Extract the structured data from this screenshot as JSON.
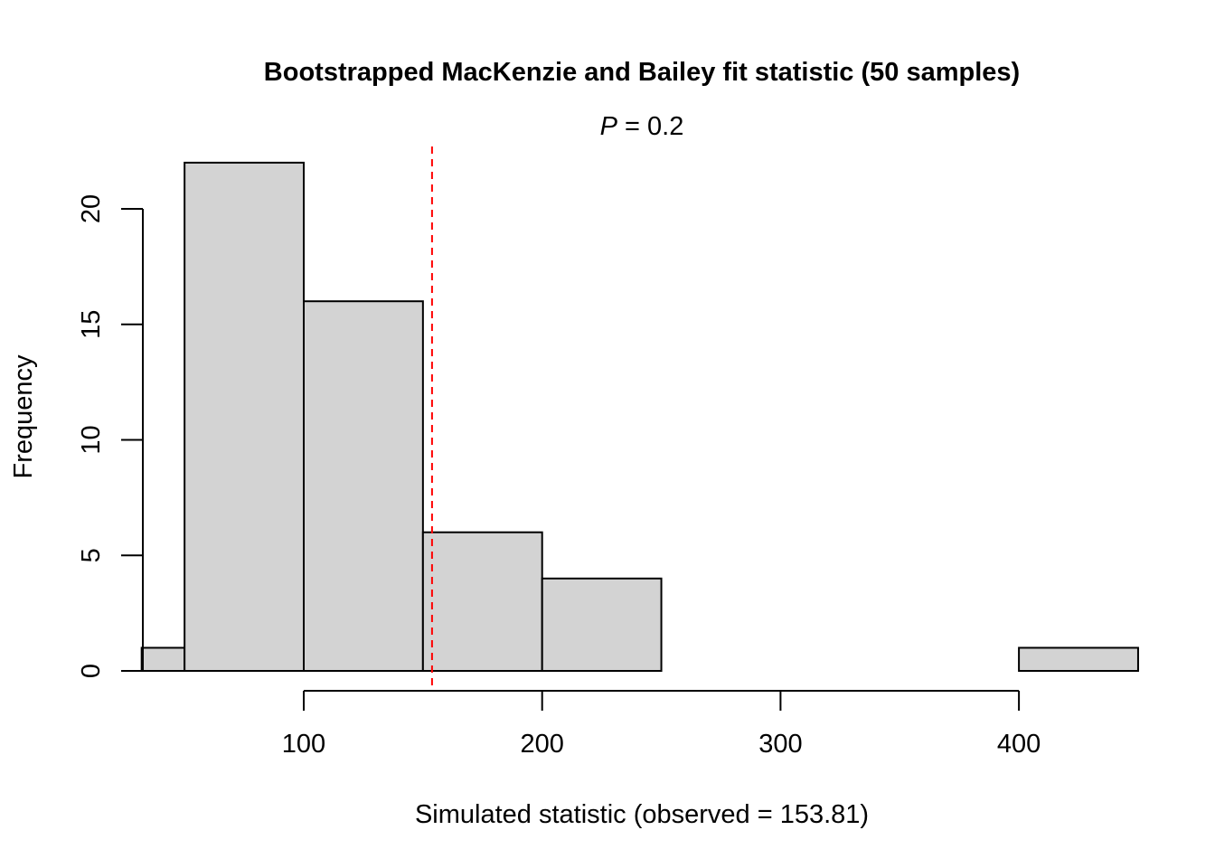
{
  "chart_data": {
    "type": "bar",
    "title": "Bootstrapped MacKenzie and Bailey fit statistic (50 samples)",
    "subtitle_italic": "P",
    "subtitle_rest": " = 0.2",
    "xlabel": "Simulated statistic (observed = 153.81)",
    "ylabel": "Frequency",
    "x_ticks": [
      100,
      200,
      300,
      400
    ],
    "y_ticks": [
      0,
      5,
      10,
      15,
      20
    ],
    "xlim": [
      32,
      450
    ],
    "ylim": [
      0,
      22
    ],
    "bins": [
      {
        "start": 32,
        "end": 50,
        "count": 1
      },
      {
        "start": 50,
        "end": 100,
        "count": 22
      },
      {
        "start": 100,
        "end": 150,
        "count": 16
      },
      {
        "start": 150,
        "end": 200,
        "count": 6
      },
      {
        "start": 200,
        "end": 250,
        "count": 4
      },
      {
        "start": 250,
        "end": 300,
        "count": 0
      },
      {
        "start": 300,
        "end": 350,
        "count": 0
      },
      {
        "start": 350,
        "end": 400,
        "count": 0
      },
      {
        "start": 400,
        "end": 450,
        "count": 1
      }
    ],
    "observed_value": 153.81,
    "bar_fill": "#d3d3d3",
    "bar_stroke": "#000000",
    "observed_line_color": "#ff0000",
    "grid": false,
    "legend": "none"
  }
}
